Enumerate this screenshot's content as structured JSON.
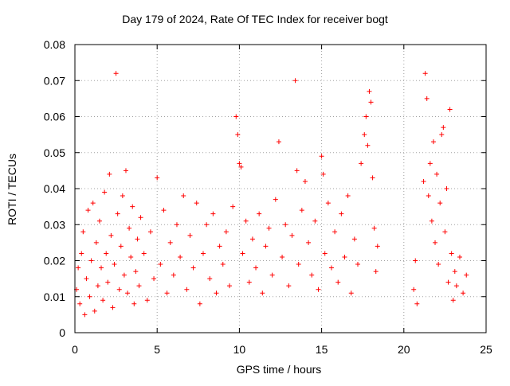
{
  "chart_data": {
    "type": "scatter",
    "title": "Day 179 of 2024, Rate Of TEC Index for receiver bogt",
    "xlabel": "GPS time / hours",
    "ylabel": "ROTI / TECUs",
    "xlim": [
      0,
      25
    ],
    "ylim": [
      0,
      0.08
    ],
    "xticks": [
      0,
      5,
      10,
      15,
      20,
      25
    ],
    "xtick_labels": [
      "0",
      "5",
      "10",
      "15",
      "20",
      "25"
    ],
    "yticks": [
      0,
      0.01,
      0.02,
      0.03,
      0.04,
      0.05,
      0.06,
      0.07,
      0.08
    ],
    "ytick_labels": [
      "0",
      "0.01",
      "0.02",
      "0.03",
      "0.04",
      "0.05",
      "0.06",
      "0.07",
      "0.08"
    ],
    "grid": true,
    "marker": "+",
    "marker_color": "#ff0000",
    "grid_color": "#a0a0a0",
    "series": [
      {
        "name": "ROTI",
        "points": [
          [
            0.1,
            0.012
          ],
          [
            0.2,
            0.018
          ],
          [
            0.3,
            0.008
          ],
          [
            0.4,
            0.022
          ],
          [
            0.5,
            0.028
          ],
          [
            0.6,
            0.005
          ],
          [
            0.7,
            0.015
          ],
          [
            0.8,
            0.034
          ],
          [
            0.9,
            0.01
          ],
          [
            1.0,
            0.02
          ],
          [
            1.1,
            0.036
          ],
          [
            1.2,
            0.006
          ],
          [
            1.3,
            0.025
          ],
          [
            1.4,
            0.013
          ],
          [
            1.5,
            0.031
          ],
          [
            1.6,
            0.018
          ],
          [
            1.7,
            0.009
          ],
          [
            1.8,
            0.039
          ],
          [
            1.9,
            0.022
          ],
          [
            2.0,
            0.014
          ],
          [
            2.1,
            0.044
          ],
          [
            2.2,
            0.027
          ],
          [
            2.3,
            0.007
          ],
          [
            2.4,
            0.019
          ],
          [
            2.5,
            0.072
          ],
          [
            2.6,
            0.033
          ],
          [
            2.7,
            0.012
          ],
          [
            2.8,
            0.024
          ],
          [
            2.9,
            0.038
          ],
          [
            3.0,
            0.016
          ],
          [
            3.1,
            0.045
          ],
          [
            3.2,
            0.011
          ],
          [
            3.3,
            0.029
          ],
          [
            3.4,
            0.021
          ],
          [
            3.5,
            0.035
          ],
          [
            3.6,
            0.008
          ],
          [
            3.7,
            0.017
          ],
          [
            3.8,
            0.026
          ],
          [
            3.9,
            0.013
          ],
          [
            4.0,
            0.032
          ],
          [
            4.2,
            0.022
          ],
          [
            4.4,
            0.009
          ],
          [
            4.6,
            0.028
          ],
          [
            4.8,
            0.015
          ],
          [
            5.0,
            0.043
          ],
          [
            5.2,
            0.019
          ],
          [
            5.4,
            0.034
          ],
          [
            5.6,
            0.011
          ],
          [
            5.8,
            0.025
          ],
          [
            6.0,
            0.016
          ],
          [
            6.2,
            0.03
          ],
          [
            6.4,
            0.021
          ],
          [
            6.6,
            0.038
          ],
          [
            6.8,
            0.012
          ],
          [
            7.0,
            0.027
          ],
          [
            7.2,
            0.018
          ],
          [
            7.4,
            0.036
          ],
          [
            7.6,
            0.008
          ],
          [
            7.8,
            0.022
          ],
          [
            8.0,
            0.03
          ],
          [
            8.2,
            0.015
          ],
          [
            8.4,
            0.033
          ],
          [
            8.6,
            0.011
          ],
          [
            8.8,
            0.024
          ],
          [
            9.0,
            0.019
          ],
          [
            9.2,
            0.028
          ],
          [
            9.4,
            0.013
          ],
          [
            9.6,
            0.035
          ],
          [
            9.8,
            0.06
          ],
          [
            9.9,
            0.055
          ],
          [
            10.0,
            0.047
          ],
          [
            10.1,
            0.046
          ],
          [
            10.2,
            0.022
          ],
          [
            10.4,
            0.031
          ],
          [
            10.6,
            0.014
          ],
          [
            10.8,
            0.026
          ],
          [
            11.0,
            0.018
          ],
          [
            11.2,
            0.033
          ],
          [
            11.4,
            0.011
          ],
          [
            11.6,
            0.024
          ],
          [
            11.8,
            0.029
          ],
          [
            12.0,
            0.016
          ],
          [
            12.2,
            0.037
          ],
          [
            12.4,
            0.053
          ],
          [
            12.6,
            0.021
          ],
          [
            12.8,
            0.03
          ],
          [
            13.0,
            0.013
          ],
          [
            13.2,
            0.027
          ],
          [
            13.4,
            0.07
          ],
          [
            13.5,
            0.045
          ],
          [
            13.6,
            0.019
          ],
          [
            13.8,
            0.034
          ],
          [
            14.0,
            0.042
          ],
          [
            14.2,
            0.025
          ],
          [
            14.4,
            0.016
          ],
          [
            14.6,
            0.031
          ],
          [
            14.8,
            0.012
          ],
          [
            15.0,
            0.049
          ],
          [
            15.1,
            0.044
          ],
          [
            15.2,
            0.022
          ],
          [
            15.4,
            0.036
          ],
          [
            15.6,
            0.018
          ],
          [
            15.8,
            0.028
          ],
          [
            16.0,
            0.014
          ],
          [
            16.2,
            0.033
          ],
          [
            16.4,
            0.021
          ],
          [
            16.6,
            0.038
          ],
          [
            16.8,
            0.011
          ],
          [
            17.0,
            0.026
          ],
          [
            17.2,
            0.019
          ],
          [
            17.4,
            0.047
          ],
          [
            17.6,
            0.055
          ],
          [
            17.7,
            0.06
          ],
          [
            17.8,
            0.052
          ],
          [
            17.9,
            0.067
          ],
          [
            18.0,
            0.064
          ],
          [
            18.1,
            0.043
          ],
          [
            18.2,
            0.029
          ],
          [
            18.3,
            0.017
          ],
          [
            18.4,
            0.024
          ],
          [
            20.6,
            0.012
          ],
          [
            20.7,
            0.02
          ],
          [
            20.8,
            0.008
          ],
          [
            21.2,
            0.042
          ],
          [
            21.3,
            0.072
          ],
          [
            21.4,
            0.065
          ],
          [
            21.5,
            0.038
          ],
          [
            21.6,
            0.047
          ],
          [
            21.7,
            0.031
          ],
          [
            21.8,
            0.053
          ],
          [
            21.9,
            0.025
          ],
          [
            22.0,
            0.044
          ],
          [
            22.1,
            0.019
          ],
          [
            22.2,
            0.036
          ],
          [
            22.3,
            0.055
          ],
          [
            22.4,
            0.057
          ],
          [
            22.5,
            0.028
          ],
          [
            22.6,
            0.04
          ],
          [
            22.7,
            0.014
          ],
          [
            22.8,
            0.062
          ],
          [
            22.9,
            0.022
          ],
          [
            23.0,
            0.009
          ],
          [
            23.1,
            0.017
          ],
          [
            23.2,
            0.013
          ],
          [
            23.4,
            0.021
          ],
          [
            23.6,
            0.011
          ],
          [
            23.8,
            0.016
          ]
        ]
      }
    ]
  }
}
